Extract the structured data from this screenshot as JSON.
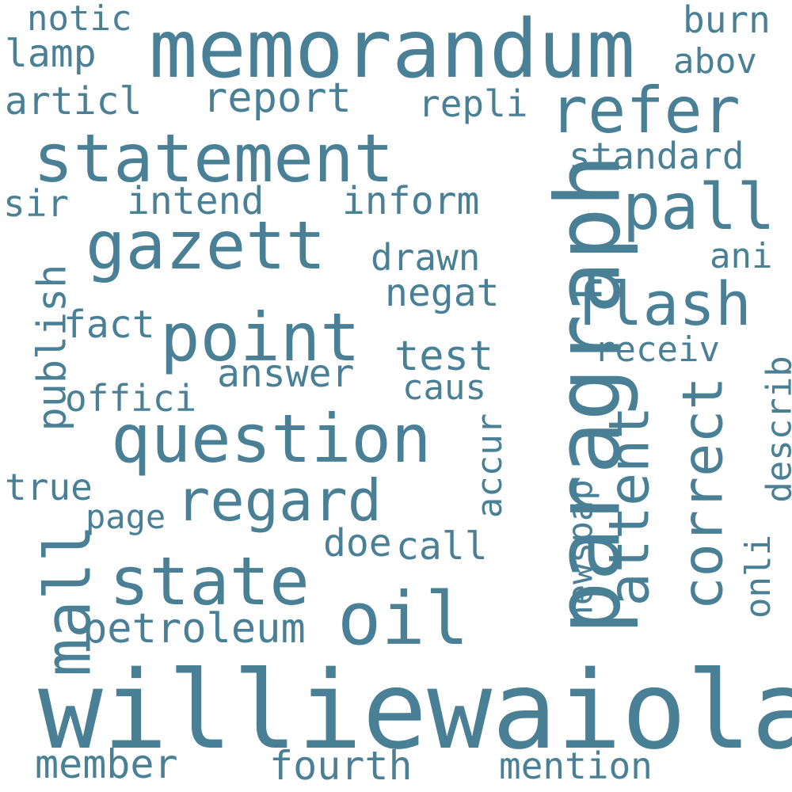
{
  "color": "#4a8096",
  "words": {
    "williewaiola": "williewaiola",
    "memorandum": "memorandum",
    "paragraph": "paragraph",
    "statement": "statement",
    "gazett": "gazett",
    "question": "question",
    "point": "point",
    "state": "state",
    "regard": "regard",
    "oil": "oil",
    "mall": "mall",
    "refer": "refer",
    "pall": "pall",
    "flash": "flash",
    "attent": "attent",
    "correct": "correct",
    "petroleum": "petroleum",
    "member": "member",
    "fourth": "fourth",
    "mention": "mention",
    "notic": "notic",
    "lamp": "lamp",
    "articl": "articl",
    "report": "report",
    "repli": "repli",
    "burn": "burn",
    "abov": "abov",
    "standard": "standard",
    "sir": "sir",
    "intend": "intend",
    "inform": "inform",
    "drawn": "drawn",
    "ani": "ani",
    "negat": "negat",
    "publish": "publish",
    "fact": "fact",
    "answer": "answer",
    "test": "test",
    "receiv": "receiv",
    "describ": "describ",
    "offici": "offici",
    "caus": "caus",
    "accur": "accur",
    "true": "true",
    "page": "page",
    "newspap": "newspap",
    "onli": "onli",
    "doe": "doe",
    "call": "call"
  }
}
